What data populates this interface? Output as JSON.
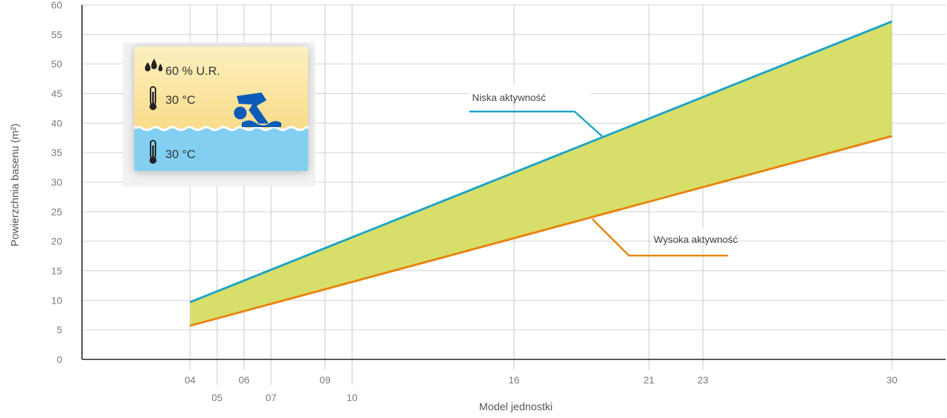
{
  "chart_data": {
    "type": "area",
    "xlabel": "Model jednostki",
    "ylabel": "Powierzchnia basenu (m²)",
    "ylim": [
      0,
      60
    ],
    "y_ticks": [
      0,
      5,
      10,
      15,
      20,
      25,
      30,
      35,
      40,
      45,
      50,
      55,
      60
    ],
    "x_ticks": [
      "04",
      "05",
      "06",
      "07",
      "09",
      "10",
      "16",
      "21",
      "23",
      "30"
    ],
    "grid": true,
    "series": [
      {
        "name": "Niska aktywność",
        "color": "#1aa3c8",
        "x": [
          "04",
          "30"
        ],
        "values": [
          9.7,
          57.2
        ]
      },
      {
        "name": "Wysoka aktywność",
        "color": "#e8820c",
        "x": [
          "04",
          "30"
        ],
        "values": [
          5.7,
          37.8
        ]
      }
    ],
    "band_color": "#d8de6a"
  },
  "conditions_card": {
    "humidity": "60 % U.R.",
    "air_temp": "30 °C",
    "water_temp": "30 °C",
    "icons": [
      "water-drops-icon",
      "thermometer-icon",
      "swimmer-icon",
      "thermometer-icon"
    ]
  }
}
